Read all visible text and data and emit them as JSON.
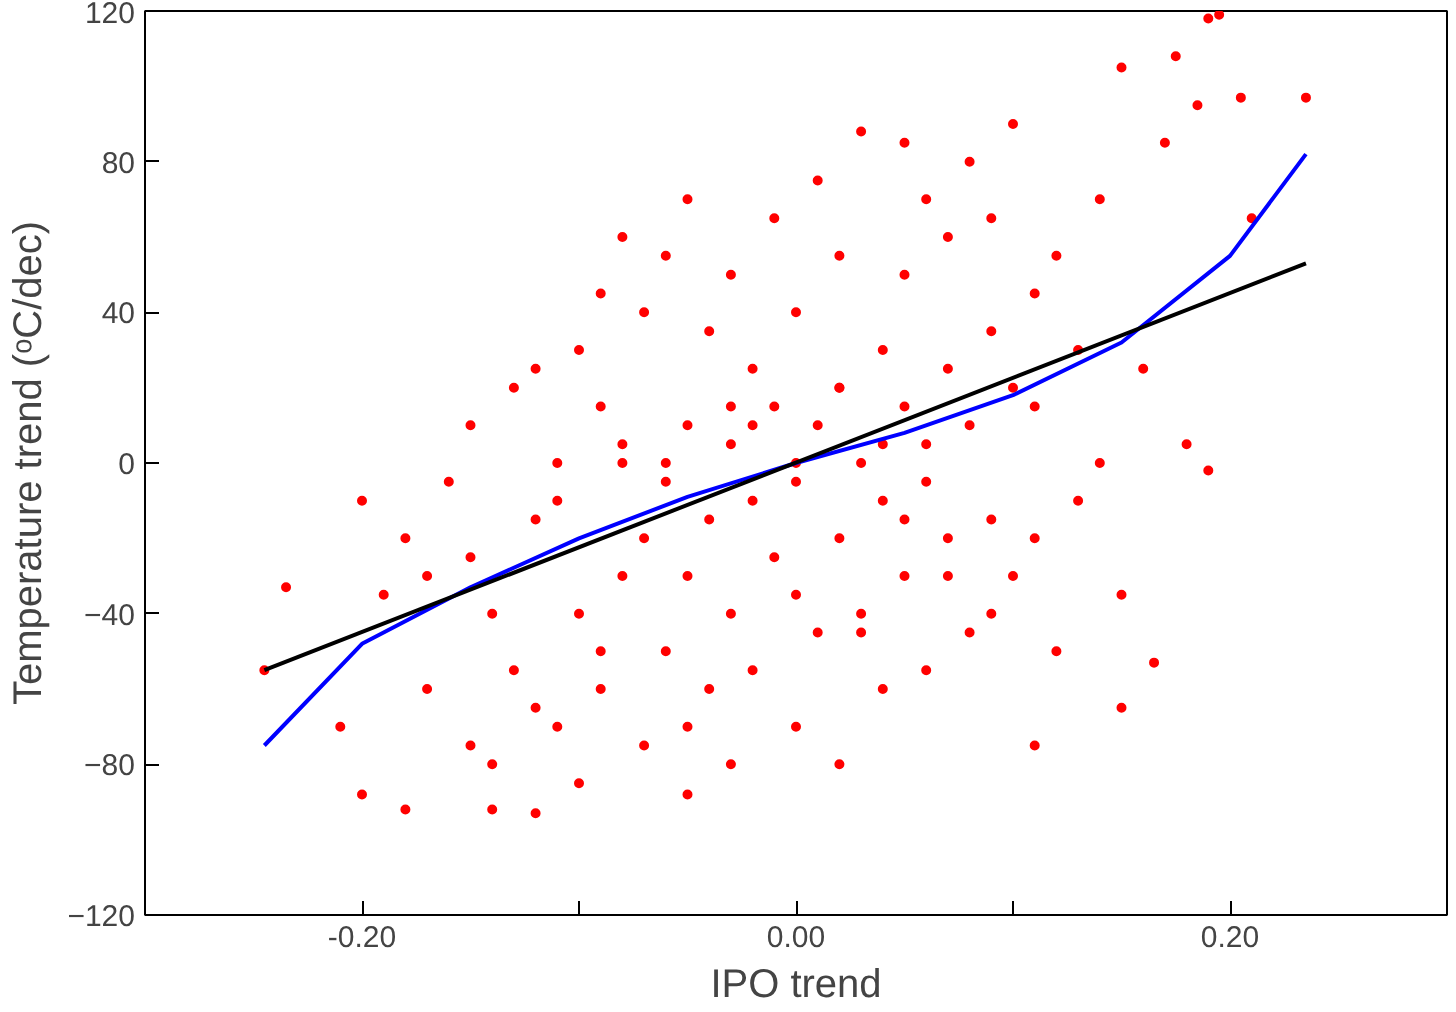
{
  "chart_data": {
    "type": "scatter",
    "xlabel": "IPO trend",
    "ylabel": "Temperature trend (ᵒC/dec)",
    "xlim": [
      -0.3,
      0.3
    ],
    "ylim": [
      -120,
      120
    ],
    "xticks": [
      {
        "value": -0.3,
        "label": null
      },
      {
        "value": -0.2,
        "label": "-0.20"
      },
      {
        "value": -0.1,
        "label": null
      },
      {
        "value": 0,
        "label": "0.00"
      },
      {
        "value": 0.1,
        "label": null
      },
      {
        "value": 0.2,
        "label": "0.20"
      },
      {
        "value": 0.3,
        "label": null
      }
    ],
    "yticks": [
      -120,
      -80,
      -40,
      0,
      40,
      80,
      120
    ],
    "grid": false,
    "series": [
      {
        "color": "#ff0000",
        "x": [
          -0.245,
          -0.235,
          -0.21,
          -0.2,
          -0.2,
          -0.19,
          -0.18,
          -0.18,
          -0.17,
          -0.17,
          -0.16,
          -0.15,
          -0.15,
          -0.14,
          -0.14,
          -0.13,
          -0.13,
          -0.12,
          -0.12,
          -0.12,
          -0.11,
          -0.11,
          -0.1,
          -0.1,
          -0.1,
          -0.09,
          -0.09,
          -0.09,
          -0.08,
          -0.08,
          -0.08,
          -0.07,
          -0.07,
          -0.07,
          -0.06,
          -0.06,
          -0.06,
          -0.05,
          -0.05,
          -0.05,
          -0.05,
          -0.04,
          -0.04,
          -0.04,
          -0.03,
          -0.03,
          -0.03,
          -0.03,
          -0.02,
          -0.02,
          -0.02,
          -0.01,
          -0.01,
          -0.01,
          0.0,
          0.0,
          0.0,
          0.0,
          0.01,
          0.01,
          0.01,
          0.02,
          0.02,
          0.02,
          0.02,
          0.03,
          0.03,
          0.03,
          0.04,
          0.04,
          0.04,
          0.05,
          0.05,
          0.05,
          0.05,
          0.06,
          0.06,
          0.06,
          0.07,
          0.07,
          0.07,
          0.08,
          0.08,
          0.08,
          0.09,
          0.09,
          0.09,
          0.1,
          0.1,
          0.1,
          0.11,
          0.11,
          0.11,
          0.12,
          0.12,
          0.13,
          0.13,
          0.14,
          0.14,
          0.15,
          0.15,
          0.15,
          0.16,
          0.165,
          0.17,
          0.175,
          0.18,
          0.185,
          0.19,
          0.19,
          0.195,
          0.205,
          0.21,
          0.235,
          -0.14,
          -0.12,
          -0.09,
          -0.05,
          0.03,
          0.07,
          -0.11,
          -0.06,
          0.0,
          0.05,
          0.09,
          -0.15,
          -0.03,
          0.02,
          0.11,
          -0.08,
          0.04,
          0.06,
          -0.02
        ],
        "values": [
          -55,
          -33,
          -70,
          -10,
          -88,
          -35,
          -92,
          -20,
          -30,
          -60,
          -5,
          -75,
          10,
          -92,
          -40,
          -55,
          20,
          -93,
          -15,
          25,
          -70,
          0,
          -85,
          -40,
          30,
          -60,
          15,
          45,
          -30,
          5,
          60,
          -75,
          -20,
          40,
          -50,
          -5,
          55,
          -88,
          -30,
          10,
          70,
          -60,
          -15,
          35,
          -80,
          -40,
          5,
          50,
          -55,
          -10,
          25,
          -25,
          15,
          65,
          -70,
          -35,
          0,
          40,
          -45,
          10,
          75,
          -80,
          -20,
          20,
          55,
          -40,
          0,
          88,
          -60,
          -10,
          30,
          -30,
          15,
          50,
          85,
          -55,
          5,
          70,
          -20,
          25,
          60,
          -45,
          10,
          80,
          -15,
          35,
          65,
          -30,
          20,
          90,
          -75,
          15,
          45,
          -50,
          55,
          -10,
          30,
          0,
          70,
          -65,
          -35,
          105,
          25,
          -53,
          85,
          108,
          5,
          95,
          118,
          -2,
          119,
          97,
          65,
          97,
          -80,
          -65,
          -50,
          -70,
          -45,
          -30,
          -10,
          0,
          -5,
          -15,
          -40,
          -25,
          15,
          20,
          -20,
          0,
          5,
          -5,
          10
        ],
        "marker": "circle"
      },
      {
        "type": "line",
        "color": "#0000ff",
        "x": [
          -0.245,
          -0.2,
          -0.15,
          -0.1,
          -0.05,
          0.0,
          0.05,
          0.1,
          0.15,
          0.2,
          0.235
        ],
        "values": [
          -75,
          -48,
          -33,
          -20,
          -9,
          0,
          8,
          18,
          32,
          55,
          82
        ],
        "marker": "none"
      },
      {
        "type": "line",
        "color": "#000000",
        "x": [
          -0.245,
          0.235
        ],
        "values": [
          -55,
          53
        ],
        "marker": "none"
      }
    ]
  }
}
